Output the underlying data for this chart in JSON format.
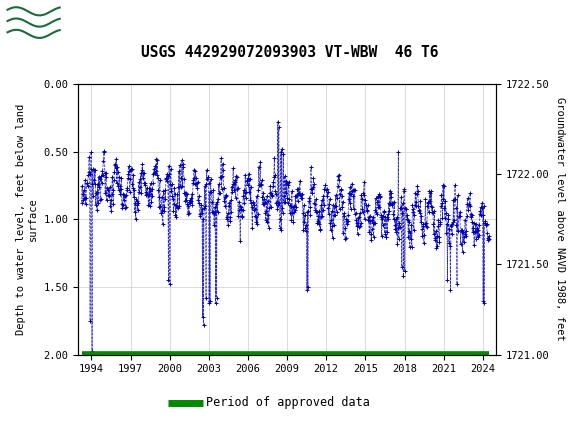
{
  "title": "USGS 442929072093903 VT-WBW  46 T6",
  "ylabel_left": "Depth to water level, feet below land\nsurface",
  "ylabel_right": "Groundwater level above NAVD 1988, feet",
  "ylim_left": [
    2.0,
    0.0
  ],
  "ylim_right": [
    1721.0,
    1722.5
  ],
  "xlim": [
    1993.0,
    2025.0
  ],
  "xticks": [
    1994,
    1997,
    2000,
    2003,
    2006,
    2009,
    2012,
    2015,
    2018,
    2021,
    2024
  ],
  "yticks_left": [
    0.0,
    0.5,
    1.0,
    1.5,
    2.0
  ],
  "yticks_right": [
    1721.0,
    1721.5,
    1722.0,
    1722.5
  ],
  "header_color": "#1a6b3c",
  "data_color": "#0000bb",
  "legend_color": "#008800",
  "background_color": "#ffffff",
  "plot_bg_color": "#ffffff",
  "grid_color": "#cccccc"
}
